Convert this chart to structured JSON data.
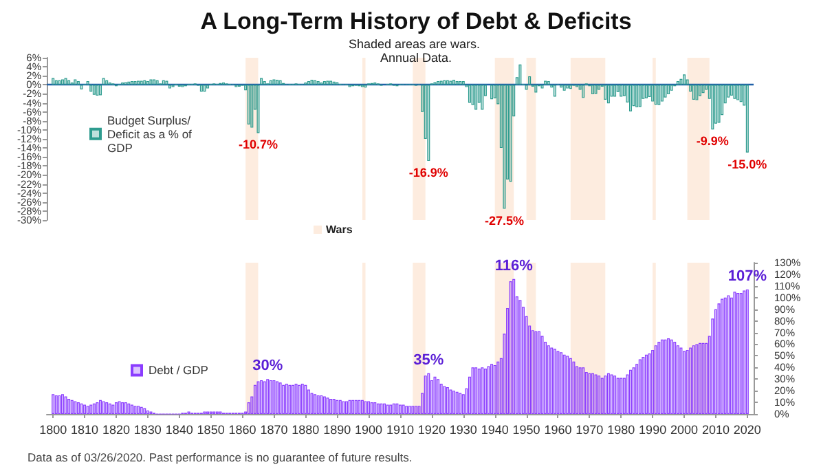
{
  "chart_data": [
    {
      "type": "bar",
      "title": "A Long-Term History of Debt & Deficits",
      "subtitle": "Shaded areas are wars. Annual Data.",
      "x": [
        1800,
        1801,
        1802,
        1803,
        1804,
        1805,
        1806,
        1807,
        1808,
        1809,
        1810,
        1811,
        1812,
        1813,
        1814,
        1815,
        1816,
        1817,
        1818,
        1819,
        1820,
        1821,
        1822,
        1823,
        1824,
        1825,
        1826,
        1827,
        1828,
        1829,
        1830,
        1831,
        1832,
        1833,
        1834,
        1835,
        1836,
        1837,
        1838,
        1839,
        1840,
        1841,
        1842,
        1843,
        1844,
        1845,
        1846,
        1847,
        1848,
        1849,
        1850,
        1851,
        1852,
        1853,
        1854,
        1855,
        1856,
        1857,
        1858,
        1859,
        1860,
        1861,
        1862,
        1863,
        1864,
        1865,
        1866,
        1867,
        1868,
        1869,
        1870,
        1871,
        1872,
        1873,
        1874,
        1875,
        1876,
        1877,
        1878,
        1879,
        1880,
        1881,
        1882,
        1883,
        1884,
        1885,
        1886,
        1887,
        1888,
        1889,
        1890,
        1891,
        1892,
        1893,
        1894,
        1895,
        1896,
        1897,
        1898,
        1899,
        1900,
        1901,
        1902,
        1903,
        1904,
        1905,
        1906,
        1907,
        1908,
        1909,
        1910,
        1911,
        1912,
        1913,
        1914,
        1915,
        1916,
        1917,
        1918,
        1919,
        1920,
        1921,
        1922,
        1923,
        1924,
        1925,
        1926,
        1927,
        1928,
        1929,
        1930,
        1931,
        1932,
        1933,
        1934,
        1935,
        1936,
        1937,
        1938,
        1939,
        1940,
        1941,
        1942,
        1943,
        1944,
        1945,
        1946,
        1947,
        1948,
        1949,
        1950,
        1951,
        1952,
        1953,
        1954,
        1955,
        1956,
        1957,
        1958,
        1959,
        1960,
        1961,
        1962,
        1963,
        1964,
        1965,
        1966,
        1967,
        1968,
        1969,
        1970,
        1971,
        1972,
        1973,
        1974,
        1975,
        1976,
        1977,
        1978,
        1979,
        1980,
        1981,
        1982,
        1983,
        1984,
        1985,
        1986,
        1987,
        1988,
        1989,
        1990,
        1991,
        1992,
        1993,
        1994,
        1995,
        1996,
        1997,
        1998,
        1999,
        2000,
        2001,
        2002,
        2003,
        2004,
        2005,
        2006,
        2007,
        2008,
        2009,
        2010,
        2011,
        2012,
        2013,
        2014,
        2015,
        2016,
        2017,
        2018,
        2019,
        2020
      ],
      "series": [
        {
          "name": "Budget Surplus/Deficit as a % of GDP",
          "color": "#2e9c8f",
          "values": [
            1.5,
            1,
            1,
            1.2,
            1.5,
            1,
            0.5,
            1.2,
            0.8,
            -1,
            0,
            0.8,
            -1.5,
            -2.2,
            -2.4,
            -2.3,
            1.5,
            1,
            0.5,
            0.3,
            -0.3,
            0.2,
            0.5,
            0.6,
            0.7,
            0.8,
            0.8,
            0.9,
            0.9,
            1,
            0.8,
            1.2,
            1.2,
            1,
            0.3,
            1,
            0.9,
            -0.8,
            -0.5,
            0.2,
            -0.4,
            -0.5,
            -0.3,
            0.2,
            0.2,
            0.3,
            -0.2,
            -1.5,
            -1.5,
            -0.8,
            0.2,
            0.3,
            0.2,
            0.4,
            0.5,
            0.3,
            0.2,
            0.1,
            -0.5,
            -0.4,
            -0.2,
            -1.2,
            -8.8,
            -9.5,
            -5.5,
            -10.7,
            1.5,
            0.8,
            0.3,
            1,
            1.2,
            1.1,
            1,
            0.4,
            0.1,
            0.2,
            0.2,
            0.3,
            0.2,
            0.1,
            0.5,
            0.8,
            1.1,
            1,
            0.8,
            0.5,
            0.8,
            0.9,
            0.9,
            0.7,
            0.6,
            0.2,
            0.1,
            0,
            -0.5,
            -0.3,
            -0.2,
            -0.3,
            -0.5,
            -0.6,
            0.3,
            0.4,
            0.5,
            0.3,
            -0.2,
            null,
            0.2,
            0.3,
            -0.2,
            -0.3,
            0,
            0.1,
            0.1,
            0,
            0,
            -0.2,
            0.1,
            -6,
            -12,
            -16.9,
            0.3,
            0.6,
            0.8,
            0.9,
            1,
            1,
            0.9,
            1.1,
            0.8,
            0.8,
            0.8,
            -0.5,
            -4,
            -4.5,
            -5.5,
            -4,
            -5.5,
            -2.5,
            null,
            -3.2,
            -3,
            -4.3,
            -14,
            -27.5,
            -21,
            -21.5,
            -7,
            1.7,
            4.5,
            0.2,
            -1.1,
            1.9,
            -0.4,
            -1.7,
            -0.3,
            -0.8,
            0.9,
            0.8,
            -0.6,
            -2.6,
            0.1,
            -0.6,
            -1.3,
            -0.8,
            -0.9,
            -0.2,
            -0.5,
            -1.1,
            -2.9,
            0.3,
            -0.3,
            -2.1,
            -2,
            -1.1,
            -0.4,
            -3.3,
            -4.1,
            -2.6,
            -2.6,
            -1.6,
            -2.6,
            -2.5,
            -3.9,
            -5.9,
            -4.7,
            -5,
            -4.9,
            -3.1,
            -3,
            -2.7,
            -3.7,
            -4.4,
            -4.5,
            -3.7,
            -2.8,
            -2.1,
            -1.3,
            -0.3,
            0.8,
            1.3,
            2.3,
            1.2,
            -1.5,
            -3.3,
            -3.4,
            -2.5,
            -1.8,
            -1.1,
            -3.1,
            -9.9,
            -8.6,
            -8.4,
            -6.7,
            -4.1,
            -2.8,
            -2.4,
            -3.1,
            -3.4,
            -3.8,
            -4.6,
            -15
          ],
          "value_labels": [
            null,
            null,
            null,
            null,
            null,
            null,
            null,
            null,
            null,
            null,
            null,
            null,
            null,
            null,
            null,
            null,
            null,
            null,
            null,
            null,
            null,
            null,
            null,
            null,
            null,
            null,
            null,
            null,
            null,
            null,
            null,
            null,
            null,
            null,
            null,
            null,
            null,
            null,
            null,
            null,
            null,
            null,
            null,
            null,
            null,
            null,
            null,
            null,
            null,
            null,
            null,
            null,
            null,
            null,
            null,
            null,
            null,
            null,
            null,
            null,
            null,
            null,
            null,
            null,
            null,
            "-10.7%",
            null,
            null,
            null,
            null,
            null,
            null,
            null,
            null,
            null,
            null,
            null,
            null,
            null,
            null,
            null,
            null,
            null,
            null,
            null,
            null,
            null,
            null,
            null,
            null,
            null,
            null,
            null,
            null,
            null,
            null,
            null,
            null,
            null,
            null,
            null,
            null,
            null,
            null,
            null,
            null,
            null,
            null,
            null,
            null,
            null,
            null,
            null,
            null,
            null,
            null,
            null,
            null,
            null,
            "-16.9%",
            null,
            null,
            null,
            null,
            null,
            null,
            null,
            null,
            null,
            null,
            null,
            null,
            null,
            null,
            null,
            null,
            null,
            null,
            null,
            null,
            null,
            null,
            null,
            "-27.5%",
            null,
            null,
            null,
            null,
            null,
            null,
            null,
            null,
            null,
            null,
            null,
            null,
            null,
            null,
            null,
            null,
            null,
            null,
            null,
            null,
            null,
            null,
            null,
            null,
            null,
            null,
            null,
            null,
            null,
            null,
            null,
            null,
            null,
            null,
            null,
            null,
            null,
            null,
            null,
            null,
            null,
            null,
            null,
            null,
            null,
            null,
            null,
            null,
            null,
            null,
            null,
            null,
            null,
            null,
            null,
            null,
            null,
            null,
            null,
            null,
            null,
            null,
            null,
            null,
            null,
            "-9.9%",
            null,
            null,
            null,
            null,
            null,
            null,
            null,
            null,
            null,
            null,
            "-15.0%"
          ]
        }
      ],
      "xlim": [
        1798,
        2022
      ],
      "ylim": [
        -30,
        6
      ],
      "yticks": [
        {
          "value": -30,
          "label": "-30%"
        },
        {
          "value": -28,
          "label": "-28%"
        },
        {
          "value": -26,
          "label": "-26%"
        },
        {
          "value": -24,
          "label": "-24%"
        },
        {
          "value": -22,
          "label": "-22%"
        },
        {
          "value": -20,
          "label": "-20%"
        },
        {
          "value": -18,
          "label": "-18%"
        },
        {
          "value": -16,
          "label": "-16%"
        },
        {
          "value": -14,
          "label": "-14%"
        },
        {
          "value": -12,
          "label": "-12%"
        },
        {
          "value": -10,
          "label": "-10%"
        },
        {
          "value": -8,
          "label": "-8%"
        },
        {
          "value": -6,
          "label": "-6%"
        },
        {
          "value": -4,
          "label": "-4%"
        },
        {
          "value": -2,
          "label": "-2%"
        },
        {
          "value": 0,
          "label": "0%"
        },
        {
          "value": 2,
          "label": "2%"
        },
        {
          "value": 4,
          "label": "4%"
        },
        {
          "value": 6,
          "label": "6%"
        }
      ],
      "bands": [
        {
          "axis": "x",
          "from": 1861,
          "to": 1865,
          "label": "Wars"
        },
        {
          "axis": "x",
          "from": 1898,
          "to": 1899
        },
        {
          "axis": "x",
          "from": 1914,
          "to": 1918
        },
        {
          "axis": "x",
          "from": 1940,
          "to": 1946
        },
        {
          "axis": "x",
          "from": 1950,
          "to": 1953
        },
        {
          "axis": "x",
          "from": 1964,
          "to": 1975
        },
        {
          "axis": "x",
          "from": 1990,
          "to": 1991
        },
        {
          "axis": "x",
          "from": 2001,
          "to": 2008
        }
      ],
      "ref_lines": [
        {
          "axis": "y",
          "value": 0,
          "color": "#1f5fa8"
        }
      ],
      "legend": "left",
      "tick_labels": "y"
    },
    {
      "type": "bar",
      "x": [
        1800,
        1801,
        1802,
        1803,
        1804,
        1805,
        1806,
        1807,
        1808,
        1809,
        1810,
        1811,
        1812,
        1813,
        1814,
        1815,
        1816,
        1817,
        1818,
        1819,
        1820,
        1821,
        1822,
        1823,
        1824,
        1825,
        1826,
        1827,
        1828,
        1829,
        1830,
        1831,
        1832,
        1833,
        1834,
        1835,
        1836,
        1837,
        1838,
        1839,
        1840,
        1841,
        1842,
        1843,
        1844,
        1845,
        1846,
        1847,
        1848,
        1849,
        1850,
        1851,
        1852,
        1853,
        1854,
        1855,
        1856,
        1857,
        1858,
        1859,
        1860,
        1861,
        1862,
        1863,
        1864,
        1865,
        1866,
        1867,
        1868,
        1869,
        1870,
        1871,
        1872,
        1873,
        1874,
        1875,
        1876,
        1877,
        1878,
        1879,
        1880,
        1881,
        1882,
        1883,
        1884,
        1885,
        1886,
        1887,
        1888,
        1889,
        1890,
        1891,
        1892,
        1893,
        1894,
        1895,
        1896,
        1897,
        1898,
        1899,
        1900,
        1901,
        1902,
        1903,
        1904,
        1905,
        1906,
        1907,
        1908,
        1909,
        1910,
        1911,
        1912,
        1913,
        1914,
        1915,
        1916,
        1917,
        1918,
        1919,
        1920,
        1921,
        1922,
        1923,
        1924,
        1925,
        1926,
        1927,
        1928,
        1929,
        1930,
        1931,
        1932,
        1933,
        1934,
        1935,
        1936,
        1937,
        1938,
        1939,
        1940,
        1941,
        1942,
        1943,
        1944,
        1945,
        1946,
        1947,
        1948,
        1949,
        1950,
        1951,
        1952,
        1953,
        1954,
        1955,
        1956,
        1957,
        1958,
        1959,
        1960,
        1961,
        1962,
        1963,
        1964,
        1965,
        1966,
        1967,
        1968,
        1969,
        1970,
        1971,
        1972,
        1973,
        1974,
        1975,
        1976,
        1977,
        1978,
        1979,
        1980,
        1981,
        1982,
        1983,
        1984,
        1985,
        1986,
        1987,
        1988,
        1989,
        1990,
        1991,
        1992,
        1993,
        1994,
        1995,
        1996,
        1997,
        1998,
        1999,
        2000,
        2001,
        2002,
        2003,
        2004,
        2005,
        2006,
        2007,
        2008,
        2009,
        2010,
        2011,
        2012,
        2013,
        2014,
        2015,
        2016,
        2017,
        2018,
        2019,
        2020
      ],
      "series": [
        {
          "name": "Debt / GDP",
          "color": "#8b3dff",
          "axis": "y2",
          "values": [
            17,
            16,
            16,
            17,
            15,
            13,
            12,
            11,
            10,
            9,
            8,
            7,
            8,
            9,
            10,
            12,
            11,
            10,
            9,
            8,
            10,
            11,
            10,
            10,
            9,
            8,
            7,
            7,
            6,
            5,
            3,
            2,
            1,
            0,
            0,
            0,
            0,
            0,
            0,
            0,
            0,
            1,
            1,
            2,
            1,
            1,
            1,
            1,
            2,
            2,
            2,
            2,
            2,
            2,
            1,
            1,
            1,
            1,
            1,
            1,
            1,
            2,
            10,
            15,
            25,
            28,
            29,
            28,
            30,
            29,
            29,
            28,
            27,
            25,
            26,
            25,
            25,
            26,
            25,
            26,
            25,
            21,
            18,
            17,
            16,
            16,
            15,
            14,
            13,
            13,
            12,
            12,
            11,
            11,
            12,
            12,
            12,
            12,
            12,
            11,
            11,
            10,
            10,
            9,
            9,
            9,
            8,
            8,
            9,
            9,
            8,
            8,
            7,
            7,
            7,
            7,
            7,
            18,
            33,
            35,
            29,
            32,
            30,
            26,
            24,
            23,
            21,
            20,
            19,
            18,
            17,
            22,
            32,
            40,
            40,
            39,
            40,
            39,
            41,
            43,
            42,
            45,
            48,
            69,
            91,
            114,
            116,
            101,
            98,
            92,
            84,
            76,
            72,
            71,
            71,
            67,
            62,
            59,
            57,
            56,
            54,
            53,
            51,
            50,
            48,
            45,
            41,
            40,
            40,
            36,
            35,
            35,
            34,
            33,
            31,
            33,
            35,
            34,
            33,
            31,
            31,
            31,
            34,
            38,
            40,
            43,
            47,
            49,
            51,
            52,
            55,
            59,
            62,
            64,
            64,
            65,
            64,
            62,
            59,
            57,
            54,
            55,
            57,
            59,
            60,
            61,
            61,
            61,
            67,
            82,
            90,
            95,
            99,
            100,
            102,
            100,
            105,
            104,
            104,
            106,
            107
          ],
          "value_labels": [
            null,
            null,
            null,
            null,
            null,
            null,
            null,
            null,
            null,
            null,
            null,
            null,
            null,
            null,
            null,
            null,
            null,
            null,
            null,
            null,
            null,
            null,
            null,
            null,
            null,
            null,
            null,
            null,
            null,
            null,
            null,
            null,
            null,
            null,
            null,
            null,
            null,
            null,
            null,
            null,
            null,
            null,
            null,
            null,
            null,
            null,
            null,
            null,
            null,
            null,
            null,
            null,
            null,
            null,
            null,
            null,
            null,
            null,
            null,
            null,
            null,
            null,
            null,
            null,
            null,
            null,
            null,
            null,
            "30%",
            null,
            null,
            null,
            null,
            null,
            null,
            null,
            null,
            null,
            null,
            null,
            null,
            null,
            null,
            null,
            null,
            null,
            null,
            null,
            null,
            null,
            null,
            null,
            null,
            null,
            null,
            null,
            null,
            null,
            null,
            null,
            null,
            null,
            null,
            null,
            null,
            null,
            null,
            null,
            null,
            null,
            null,
            null,
            null,
            null,
            null,
            null,
            null,
            null,
            null,
            "35%",
            null,
            null,
            null,
            null,
            null,
            null,
            null,
            null,
            null,
            null,
            null,
            null,
            null,
            null,
            null,
            null,
            null,
            null,
            null,
            null,
            null,
            null,
            null,
            null,
            null,
            null,
            "116%",
            null,
            null,
            null,
            null,
            null,
            null,
            null,
            null,
            null,
            null,
            null,
            null,
            null,
            null,
            null,
            null,
            null,
            null,
            null,
            null,
            null,
            null,
            null,
            null,
            null,
            null,
            null,
            null,
            null,
            null,
            null,
            null,
            null,
            null,
            null,
            null,
            null,
            null,
            null,
            null,
            null,
            null,
            null,
            null,
            null,
            null,
            null,
            null,
            null,
            null,
            null,
            null,
            null,
            null,
            null,
            null,
            null,
            null,
            null,
            null,
            null,
            null,
            null,
            null,
            null,
            null,
            null,
            null,
            null,
            null,
            null,
            null,
            null,
            "107%"
          ]
        }
      ],
      "xlim": [
        1798,
        2022
      ],
      "xticks": [
        1800,
        1810,
        1820,
        1830,
        1840,
        1850,
        1860,
        1870,
        1880,
        1890,
        1900,
        1910,
        1920,
        1930,
        1940,
        1950,
        1960,
        1970,
        1980,
        1990,
        2000,
        2010,
        2020
      ],
      "y2lim": [
        0,
        130
      ],
      "y2ticks": [
        {
          "value": 0,
          "label": "0%"
        },
        {
          "value": 10,
          "label": "10%"
        },
        {
          "value": 20,
          "label": "20%"
        },
        {
          "value": 30,
          "label": "30%"
        },
        {
          "value": 40,
          "label": "40%"
        },
        {
          "value": 50,
          "label": "50%"
        },
        {
          "value": 60,
          "label": "60%"
        },
        {
          "value": 70,
          "label": "70%"
        },
        {
          "value": 80,
          "label": "80%"
        },
        {
          "value": 90,
          "label": "90%"
        },
        {
          "value": 100,
          "label": "100%"
        },
        {
          "value": 110,
          "label": "110%"
        },
        {
          "value": 120,
          "label": "120%"
        },
        {
          "value": 130,
          "label": "130%"
        }
      ],
      "bands": [
        {
          "axis": "x",
          "from": 1861,
          "to": 1865
        },
        {
          "axis": "x",
          "from": 1898,
          "to": 1899
        },
        {
          "axis": "x",
          "from": 1914,
          "to": 1918
        },
        {
          "axis": "x",
          "from": 1940,
          "to": 1946
        },
        {
          "axis": "x",
          "from": 1950,
          "to": 1953
        },
        {
          "axis": "x",
          "from": 1964,
          "to": 1975
        },
        {
          "axis": "x",
          "from": 1990,
          "to": 1991
        },
        {
          "axis": "x",
          "from": 2001,
          "to": 2008
        }
      ],
      "legend": "left",
      "annotations": [
        "Data as of 03/26/2020. Past performance is no guarantee of future results."
      ]
    }
  ]
}
